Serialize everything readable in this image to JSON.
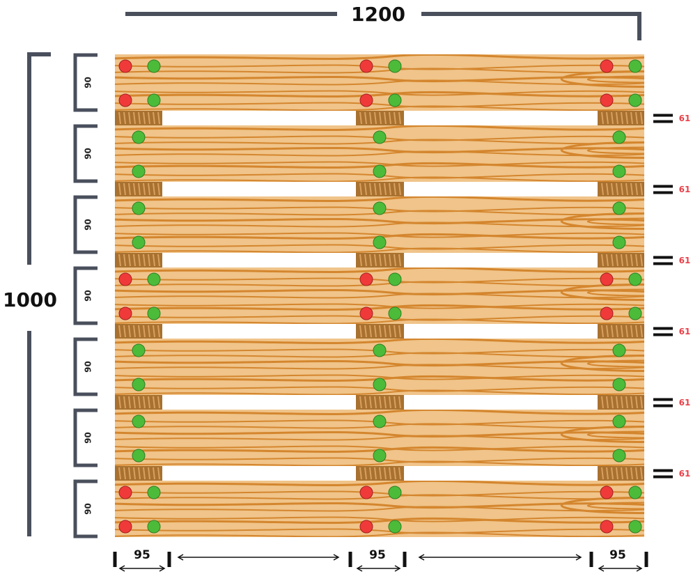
{
  "dimensions": {
    "width_label": "1200",
    "depth_label": "1000",
    "board_width_label": "90",
    "gap_label": "61",
    "block_width_label": "95"
  },
  "colors": {
    "wood": "#f0c48a",
    "grain": "#d4862e",
    "block": "#a8712f",
    "dimension_line": "#4a4f5c",
    "gap_text": "#e8424a",
    "red_nail": "#f03a3a",
    "green_nail": "#4cbb3a"
  },
  "pallet": {
    "top_boards": 7,
    "board_types": [
      "edge",
      "inner",
      "inner",
      "center",
      "inner",
      "inner",
      "edge"
    ],
    "block_columns": 3
  }
}
